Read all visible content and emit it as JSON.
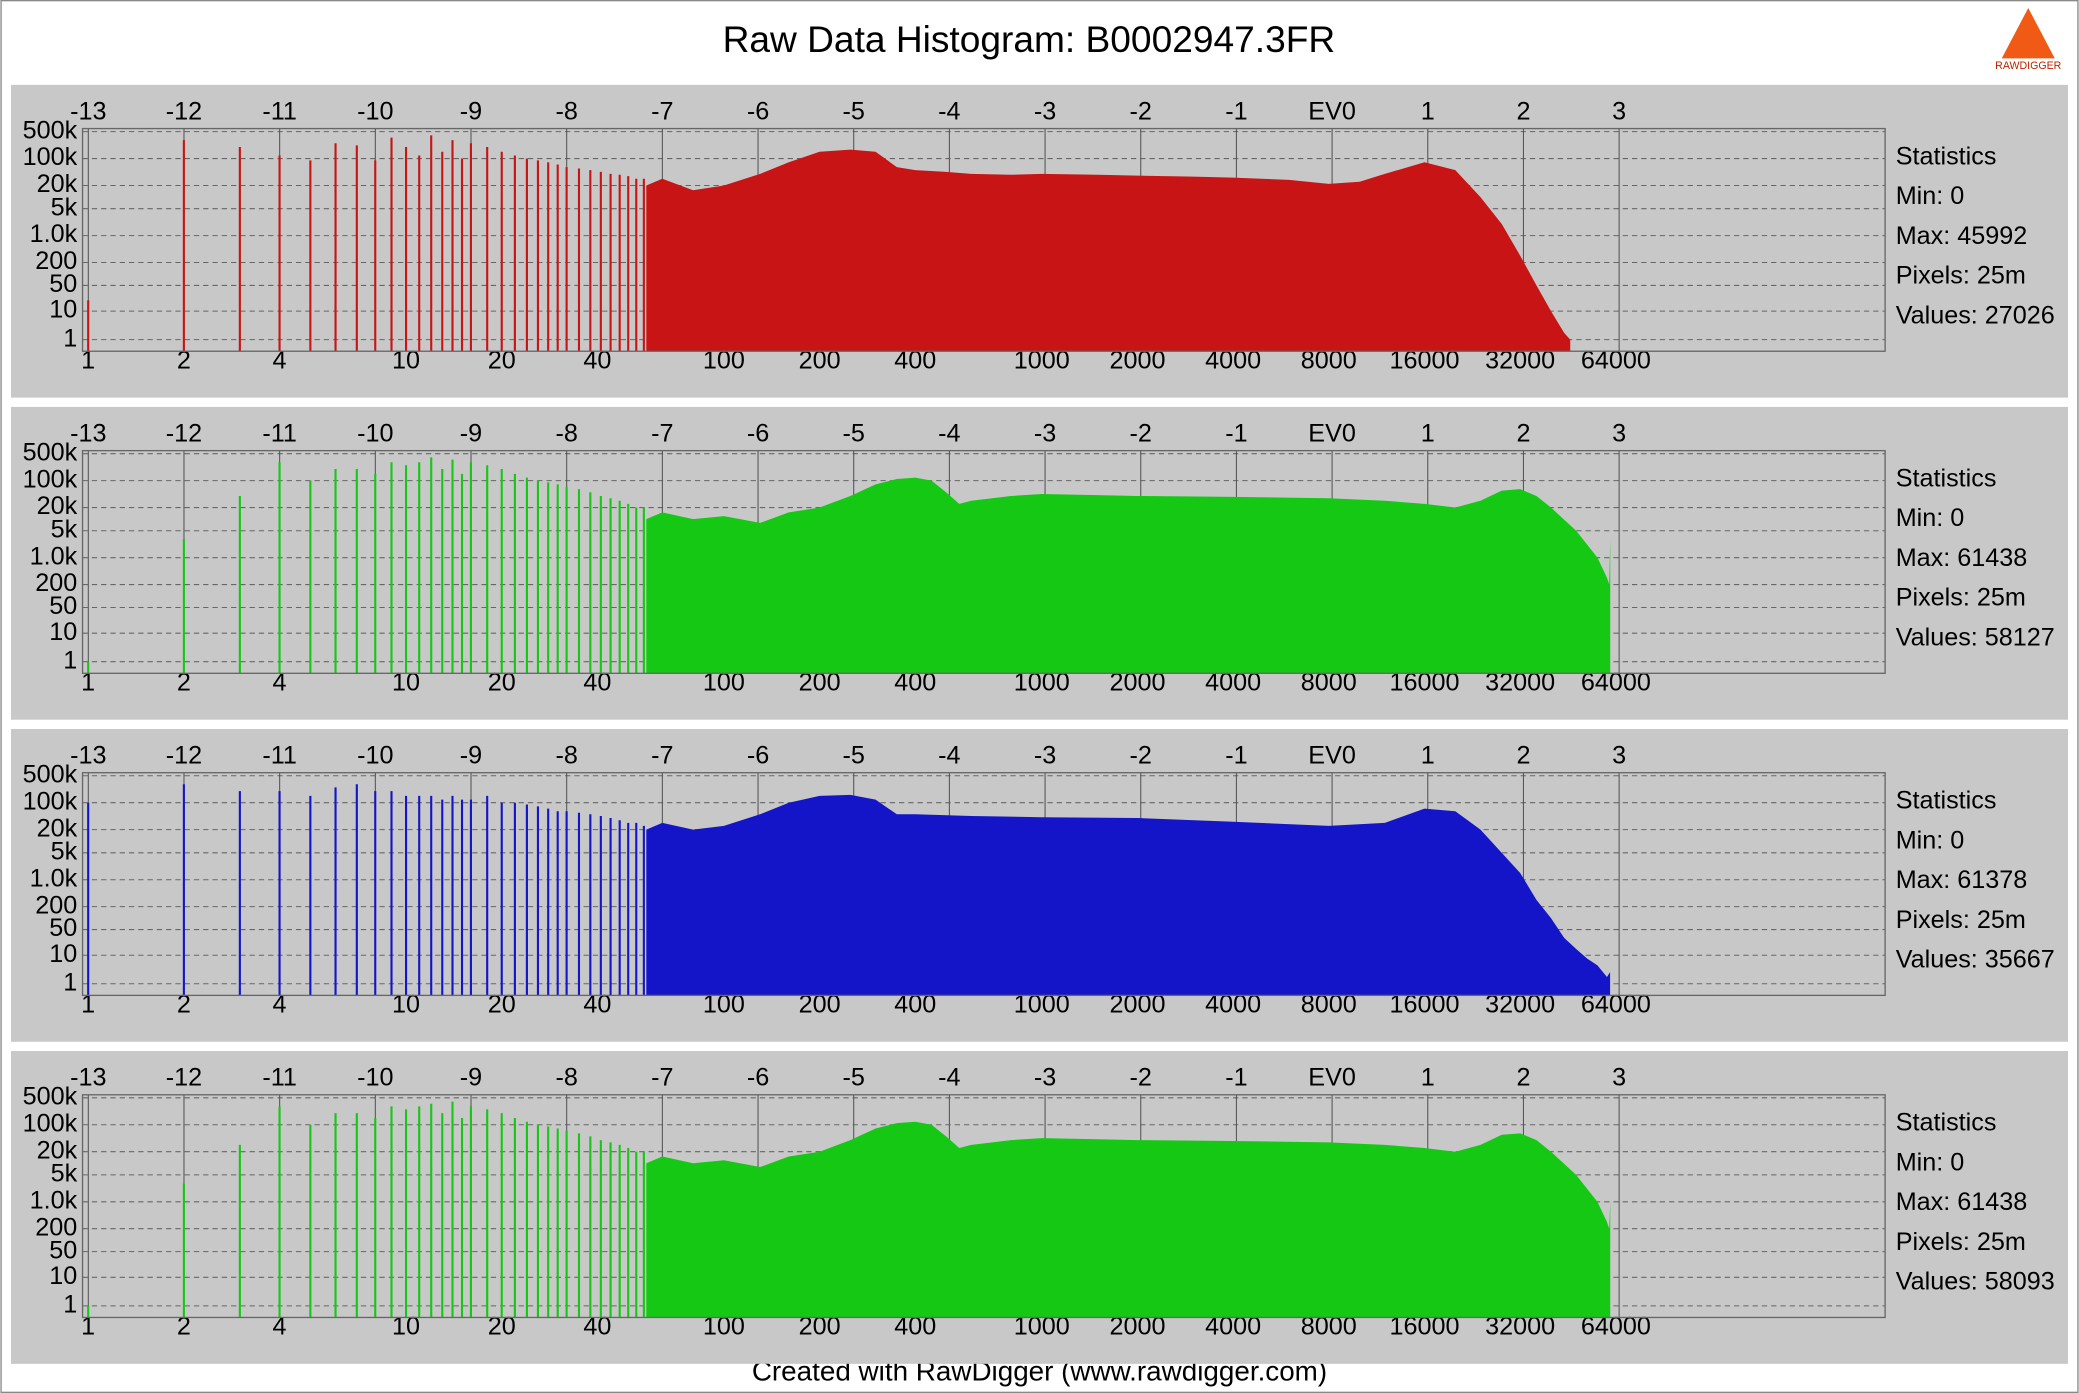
{
  "title": "Raw Data Histogram: B0002947.3FR",
  "footer": "Created with RawDigger (www.rawdigger.com)",
  "logo_text": "RAWDIGGER",
  "chart_data": [
    {
      "type": "histogram",
      "color": "#c81414",
      "xscale": "log",
      "yscale": "log1p",
      "grid": true,
      "xlim": [
        0.96,
        450000
      ],
      "ylim": [
        0,
        600000
      ],
      "x2lim": [
        -13.06,
        5.78
      ],
      "xticks": [
        1,
        2,
        4,
        10,
        20,
        40,
        100,
        200,
        400,
        1000,
        2000,
        4000,
        8000,
        16000,
        32000,
        64000
      ],
      "x2ticks": [
        -13,
        -12,
        -11,
        -10,
        -9,
        -8,
        -7,
        -6,
        -5,
        -4,
        -3,
        -2,
        -1,
        {
          "value": 0,
          "label": "EV0"
        },
        1,
        2,
        3
      ],
      "yticks": [
        1,
        10,
        50,
        200,
        {
          "value": 1000,
          "label": "1.0k"
        },
        {
          "value": 5000,
          "label": "5k"
        },
        {
          "value": 20000,
          "label": "20k"
        },
        {
          "value": 100000,
          "label": "100k"
        },
        {
          "value": 500000,
          "label": "500k"
        }
      ],
      "stats": [
        "Statistics",
        "Min: 0",
        "Max: 45992",
        "Pixels: 25m",
        "Values: 27026"
      ],
      "spike_x": [
        1,
        2,
        3,
        4,
        5,
        6,
        7,
        8,
        9,
        10,
        11,
        12,
        13,
        14,
        15,
        16,
        18,
        20,
        22,
        24,
        26,
        28,
        30,
        32,
        35,
        38,
        41,
        44,
        47,
        50,
        53,
        56
      ],
      "spike_values": [
        20,
        300000,
        200000,
        120000,
        90000,
        250000,
        220000,
        90000,
        350000,
        200000,
        120000,
        400000,
        150000,
        300000,
        100000,
        250000,
        200000,
        150000,
        120000,
        100000,
        90000,
        80000,
        70000,
        60000,
        55000,
        50000,
        45000,
        40000,
        38000,
        35000,
        30000,
        30000
      ],
      "x": [
        57,
        64,
        80,
        100,
        130,
        160,
        200,
        250,
        300,
        350,
        400,
        500,
        600,
        800,
        1000,
        1500,
        2000,
        3000,
        4000,
        6000,
        8000,
        10000,
        12000,
        16000,
        20000,
        24000,
        28000,
        32000,
        36000,
        40000,
        44000,
        45992
      ],
      "values": [
        20000,
        30000,
        15000,
        20000,
        40000,
        80000,
        150000,
        170000,
        150000,
        60000,
        50000,
        45000,
        40000,
        38000,
        40000,
        38000,
        36000,
        34000,
        32000,
        28000,
        22000,
        25000,
        40000,
        80000,
        50000,
        10000,
        2000,
        300,
        50,
        10,
        2,
        1
      ]
    },
    {
      "type": "histogram",
      "color": "#14c814",
      "xscale": "log",
      "yscale": "log1p",
      "grid": true,
      "xlim": [
        0.96,
        450000
      ],
      "ylim": [
        0,
        600000
      ],
      "x2lim": [
        -13.06,
        5.78
      ],
      "xticks": [
        1,
        2,
        4,
        10,
        20,
        40,
        100,
        200,
        400,
        1000,
        2000,
        4000,
        8000,
        16000,
        32000,
        64000
      ],
      "x2ticks": [
        -13,
        -12,
        -11,
        -10,
        -9,
        -8,
        -7,
        -6,
        -5,
        -4,
        -3,
        -2,
        -1,
        {
          "value": 0,
          "label": "EV0"
        },
        1,
        2,
        3
      ],
      "yticks": [
        1,
        10,
        50,
        200,
        {
          "value": 1000,
          "label": "1.0k"
        },
        {
          "value": 5000,
          "label": "5k"
        },
        {
          "value": 20000,
          "label": "20k"
        },
        {
          "value": 100000,
          "label": "100k"
        },
        {
          "value": 500000,
          "label": "500k"
        }
      ],
      "stats": [
        "Statistics",
        "Min: 0",
        "Max: 61438",
        "Pixels: 25m",
        "Values: 58127"
      ],
      "spike_x": [
        1,
        2,
        3,
        4,
        5,
        6,
        7,
        8,
        9,
        10,
        11,
        12,
        13,
        14,
        15,
        16,
        18,
        20,
        22,
        24,
        26,
        28,
        30,
        32,
        35,
        38,
        41,
        44,
        47,
        50,
        53,
        56
      ],
      "spike_values": [
        1,
        3000,
        40000,
        300000,
        100000,
        200000,
        200000,
        150000,
        300000,
        250000,
        300000,
        400000,
        200000,
        350000,
        150000,
        300000,
        250000,
        200000,
        150000,
        120000,
        100000,
        90000,
        80000,
        70000,
        60000,
        50000,
        40000,
        35000,
        30000,
        25000,
        20000,
        20000
      ],
      "x": [
        57,
        64,
        80,
        100,
        130,
        160,
        200,
        250,
        300,
        350,
        400,
        450,
        500,
        550,
        600,
        800,
        1000,
        1500,
        2000,
        4000,
        8000,
        12000,
        16000,
        20000,
        24000,
        28000,
        32000,
        36000,
        40000,
        48000,
        56000,
        60000,
        61000,
        61438
      ],
      "values": [
        10000,
        15000,
        10000,
        12000,
        8000,
        15000,
        20000,
        40000,
        80000,
        110000,
        120000,
        100000,
        50000,
        25000,
        30000,
        40000,
        45000,
        42000,
        40000,
        38000,
        35000,
        30000,
        25000,
        20000,
        30000,
        55000,
        60000,
        40000,
        20000,
        5000,
        1000,
        300,
        200,
        3000
      ]
    },
    {
      "type": "histogram",
      "color": "#1414c8",
      "xscale": "log",
      "yscale": "log1p",
      "grid": true,
      "xlim": [
        0.96,
        450000
      ],
      "ylim": [
        0,
        600000
      ],
      "x2lim": [
        -13.06,
        5.78
      ],
      "xticks": [
        1,
        2,
        4,
        10,
        20,
        40,
        100,
        200,
        400,
        1000,
        2000,
        4000,
        8000,
        16000,
        32000,
        64000
      ],
      "x2ticks": [
        -13,
        -12,
        -11,
        -10,
        -9,
        -8,
        -7,
        -6,
        -5,
        -4,
        -3,
        -2,
        -1,
        {
          "value": 0,
          "label": "EV0"
        },
        1,
        2,
        3
      ],
      "yticks": [
        1,
        10,
        50,
        200,
        {
          "value": 1000,
          "label": "1.0k"
        },
        {
          "value": 5000,
          "label": "5k"
        },
        {
          "value": 20000,
          "label": "20k"
        },
        {
          "value": 100000,
          "label": "100k"
        },
        {
          "value": 500000,
          "label": "500k"
        }
      ],
      "stats": [
        "Statistics",
        "Min: 0",
        "Max: 61378",
        "Pixels: 25m",
        "Values: 35667"
      ],
      "spike_x": [
        1,
        2,
        3,
        4,
        5,
        6,
        7,
        8,
        9,
        10,
        11,
        12,
        13,
        14,
        15,
        16,
        18,
        20,
        22,
        24,
        26,
        28,
        30,
        32,
        35,
        38,
        41,
        44,
        47,
        50,
        53,
        56
      ],
      "spike_values": [
        100000,
        300000,
        200000,
        200000,
        150000,
        250000,
        300000,
        200000,
        200000,
        150000,
        150000,
        150000,
        120000,
        150000,
        120000,
        120000,
        150000,
        100000,
        100000,
        90000,
        80000,
        70000,
        60000,
        60000,
        55000,
        50000,
        45000,
        40000,
        35000,
        30000,
        30000,
        25000
      ],
      "x": [
        57,
        64,
        80,
        100,
        130,
        160,
        200,
        250,
        300,
        350,
        400,
        600,
        1000,
        2000,
        4000,
        8000,
        12000,
        16000,
        20000,
        24000,
        28000,
        32000,
        36000,
        40000,
        44000,
        48000,
        52000,
        56000,
        60000,
        61378
      ],
      "values": [
        20000,
        30000,
        20000,
        25000,
        50000,
        100000,
        150000,
        160000,
        120000,
        50000,
        50000,
        45000,
        42000,
        40000,
        32000,
        25000,
        30000,
        70000,
        60000,
        20000,
        5000,
        1500,
        300,
        100,
        30,
        15,
        8,
        5,
        2,
        3
      ]
    },
    {
      "type": "histogram",
      "color": "#14c814",
      "xscale": "log",
      "yscale": "log1p",
      "grid": true,
      "xlim": [
        0.96,
        450000
      ],
      "ylim": [
        0,
        600000
      ],
      "x2lim": [
        -13.06,
        5.78
      ],
      "xticks": [
        1,
        2,
        4,
        10,
        20,
        40,
        100,
        200,
        400,
        1000,
        2000,
        4000,
        8000,
        16000,
        32000,
        64000
      ],
      "x2ticks": [
        -13,
        -12,
        -11,
        -10,
        -9,
        -8,
        -7,
        -6,
        -5,
        -4,
        -3,
        -2,
        -1,
        {
          "value": 0,
          "label": "EV0"
        },
        1,
        2,
        3
      ],
      "yticks": [
        1,
        10,
        50,
        200,
        {
          "value": 1000,
          "label": "1.0k"
        },
        {
          "value": 5000,
          "label": "5k"
        },
        {
          "value": 20000,
          "label": "20k"
        },
        {
          "value": 100000,
          "label": "100k"
        },
        {
          "value": 500000,
          "label": "500k"
        }
      ],
      "stats": [
        "Statistics",
        "Min: 0",
        "Max: 61438",
        "Pixels: 25m",
        "Values: 58093"
      ],
      "spike_x": [
        1,
        2,
        3,
        4,
        5,
        6,
        7,
        8,
        9,
        10,
        11,
        12,
        13,
        14,
        15,
        16,
        18,
        20,
        22,
        24,
        26,
        28,
        30,
        32,
        35,
        38,
        41,
        44,
        47,
        50,
        53,
        56
      ],
      "spike_values": [
        1,
        3000,
        30000,
        300000,
        100000,
        200000,
        200000,
        150000,
        300000,
        250000,
        300000,
        350000,
        200000,
        400000,
        150000,
        300000,
        250000,
        200000,
        150000,
        120000,
        100000,
        90000,
        80000,
        70000,
        60000,
        50000,
        40000,
        35000,
        30000,
        25000,
        20000,
        20000
      ],
      "x": [
        57,
        64,
        80,
        100,
        130,
        160,
        200,
        250,
        300,
        350,
        400,
        450,
        500,
        550,
        600,
        800,
        1000,
        1500,
        2000,
        4000,
        8000,
        12000,
        16000,
        20000,
        24000,
        28000,
        32000,
        36000,
        40000,
        48000,
        56000,
        60000,
        61000,
        61438
      ],
      "values": [
        10000,
        15000,
        10000,
        12000,
        8000,
        15000,
        20000,
        40000,
        80000,
        110000,
        120000,
        100000,
        50000,
        25000,
        30000,
        40000,
        45000,
        42000,
        40000,
        38000,
        35000,
        30000,
        25000,
        20000,
        30000,
        55000,
        60000,
        40000,
        20000,
        5000,
        1000,
        300,
        200,
        1000
      ]
    }
  ]
}
